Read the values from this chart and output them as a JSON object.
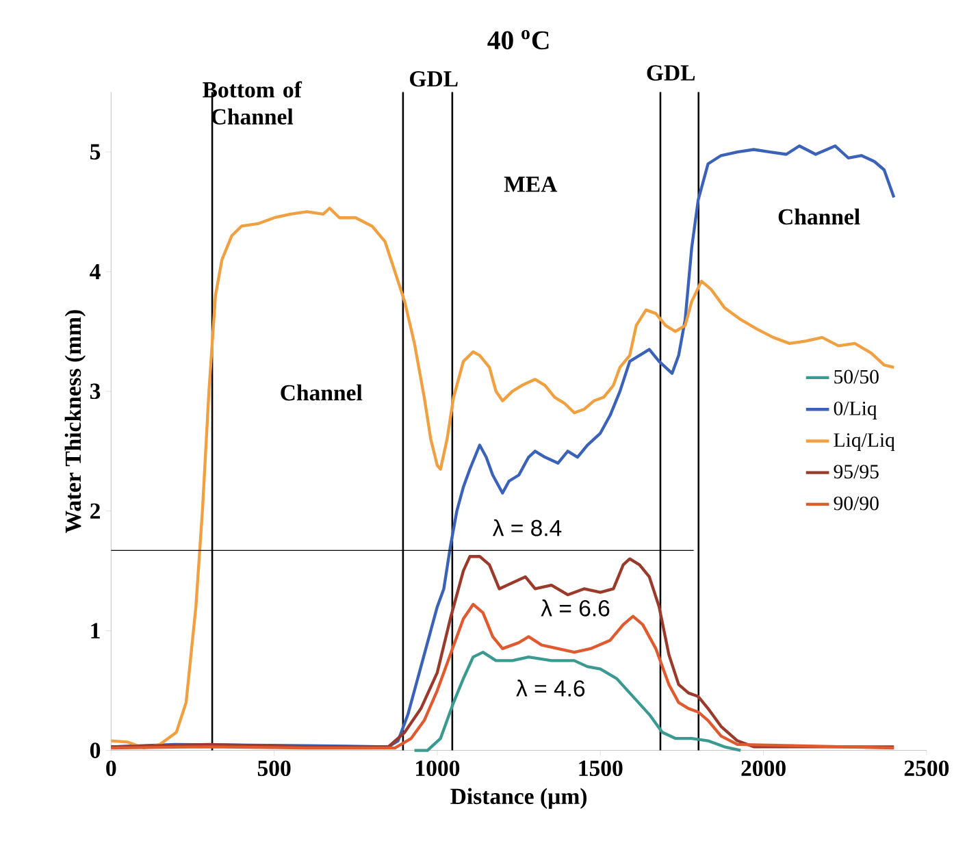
{
  "chart_data": {
    "type": "line",
    "title": "40 $^{o}$C",
    "xlabel": "Distance (µm)",
    "ylabel": "Water Thickness (mm)",
    "xlim": [
      0,
      2500
    ],
    "ylim": [
      0,
      5.5
    ],
    "xticks": [
      0,
      500,
      1000,
      1500,
      2000,
      2500
    ],
    "yticks": [
      0,
      1,
      2,
      3,
      4,
      5
    ],
    "grid": false,
    "legend": "right",
    "line_style": "solid",
    "marker": "none",
    "ref_lines": [
      {
        "axis": "x",
        "value": 310,
        "color": "#000000"
      },
      {
        "axis": "x",
        "value": 895,
        "color": "#000000"
      },
      {
        "axis": "x",
        "value": 1046,
        "color": "#000000"
      },
      {
        "axis": "x",
        "value": 1684,
        "color": "#000000"
      },
      {
        "axis": "x",
        "value": 1801,
        "color": "#000000"
      }
    ],
    "annotations": [
      "Bottom of Channel",
      "GDL",
      "GDL",
      "MEA",
      "Channel",
      "Channel",
      "λ = 8.4",
      "λ = 6.6",
      "λ = 4.6"
    ],
    "series": [
      {
        "name": "50/50",
        "color": "#3a9a8f",
        "x": [
          930,
          970,
          1010,
          1050,
          1080,
          1110,
          1140,
          1180,
          1230,
          1280,
          1350,
          1420,
          1460,
          1500,
          1550,
          1600,
          1650,
          1690,
          1730,
          1780,
          1830,
          1880,
          1930
        ],
        "values": [
          0,
          0,
          0.1,
          0.4,
          0.6,
          0.78,
          0.82,
          0.75,
          0.75,
          0.78,
          0.75,
          0.75,
          0.7,
          0.68,
          0.6,
          0.45,
          0.3,
          0.15,
          0.1,
          0.1,
          0.08,
          0.03,
          0
        ]
      },
      {
        "name": "0/Liq",
        "color": "#3a62b8",
        "x": [
          0,
          200,
          400,
          600,
          850,
          880,
          910,
          950,
          980,
          1000,
          1020,
          1040,
          1060,
          1080,
          1100,
          1130,
          1150,
          1170,
          1200,
          1220,
          1250,
          1280,
          1300,
          1330,
          1370,
          1400,
          1430,
          1460,
          1500,
          1530,
          1560,
          1590,
          1620,
          1650,
          1680,
          1700,
          1720,
          1740,
          1760,
          1780,
          1800,
          1830,
          1870,
          1920,
          1970,
          2020,
          2070,
          2110,
          2160,
          2220,
          2260,
          2300,
          2340,
          2370,
          2400
        ],
        "values": [
          0.03,
          0.05,
          null,
          0.04,
          0.03,
          0.08,
          0.3,
          0.7,
          1.0,
          1.2,
          1.35,
          1.7,
          2.0,
          2.2,
          2.35,
          2.55,
          2.45,
          2.3,
          2.15,
          2.25,
          2.3,
          2.45,
          2.5,
          2.45,
          2.4,
          2.5,
          2.45,
          2.55,
          2.65,
          2.8,
          3.0,
          3.25,
          3.3,
          3.35,
          3.25,
          3.2,
          3.15,
          3.3,
          3.6,
          4.2,
          4.6,
          4.9,
          4.97,
          5.0,
          5.02,
          5.0,
          4.98,
          5.05,
          4.98,
          5.05,
          4.95,
          4.97,
          4.92,
          4.85,
          4.62
        ]
      },
      {
        "name": "Liq/Liq",
        "color": "#f0a040",
        "x": [
          0,
          50,
          100,
          150,
          200,
          230,
          260,
          280,
          300,
          320,
          340,
          370,
          400,
          450,
          500,
          550,
          600,
          650,
          670,
          700,
          750,
          800,
          840,
          870,
          900,
          930,
          960,
          980,
          1000,
          1010,
          1030,
          1050,
          1080,
          1110,
          1130,
          1160,
          1180,
          1200,
          1230,
          1260,
          1300,
          1330,
          1360,
          1390,
          1420,
          1450,
          1480,
          1510,
          1540,
          1560,
          1590,
          1610,
          1640,
          1670,
          1700,
          1730,
          1760,
          1780,
          1810,
          1840,
          1880,
          1930,
          1980,
          2030,
          2080,
          2130,
          2180,
          2230,
          2280,
          2330,
          2370,
          2400
        ],
        "values": [
          0.08,
          0.07,
          0.02,
          0.05,
          0.15,
          0.4,
          1.2,
          2.0,
          3.0,
          3.8,
          4.1,
          4.3,
          4.38,
          4.4,
          4.45,
          4.48,
          4.5,
          4.48,
          4.53,
          4.45,
          4.45,
          4.38,
          4.25,
          4.0,
          3.75,
          3.4,
          2.95,
          2.6,
          2.38,
          2.35,
          2.6,
          2.95,
          3.25,
          3.33,
          3.3,
          3.2,
          3.0,
          2.92,
          3.0,
          3.05,
          3.1,
          3.05,
          2.95,
          2.9,
          2.82,
          2.85,
          2.92,
          2.95,
          3.05,
          3.2,
          3.3,
          3.55,
          3.68,
          3.65,
          3.55,
          3.5,
          3.55,
          3.75,
          3.92,
          3.85,
          3.7,
          3.6,
          3.52,
          3.45,
          3.4,
          3.42,
          3.45,
          3.38,
          3.4,
          3.32,
          3.22,
          3.2
        ]
      },
      {
        "name": "95/95",
        "color": "#9a3a2a",
        "x": [
          0,
          300,
          600,
          850,
          900,
          950,
          1000,
          1040,
          1080,
          1100,
          1130,
          1160,
          1190,
          1230,
          1270,
          1300,
          1350,
          1400,
          1450,
          1500,
          1540,
          1570,
          1590,
          1620,
          1650,
          1680,
          1710,
          1740,
          1770,
          1800,
          1830,
          1870,
          1920,
          1970,
          2400
        ],
        "values": [
          0.03,
          0.05,
          0.03,
          0.03,
          0.15,
          0.35,
          0.65,
          1.1,
          1.5,
          1.62,
          1.62,
          1.55,
          1.35,
          1.4,
          1.45,
          1.35,
          1.38,
          1.3,
          1.35,
          1.32,
          1.35,
          1.55,
          1.6,
          1.55,
          1.45,
          1.2,
          0.8,
          0.55,
          0.48,
          0.45,
          0.35,
          0.2,
          0.08,
          0.03,
          0.03
        ]
      },
      {
        "name": "90/90",
        "color": "#e05a30",
        "x": [
          0,
          300,
          600,
          870,
          920,
          960,
          1000,
          1040,
          1080,
          1110,
          1140,
          1170,
          1200,
          1250,
          1280,
          1320,
          1370,
          1420,
          1470,
          1530,
          1570,
          1600,
          1630,
          1670,
          1710,
          1740,
          1770,
          1800,
          1830,
          1870,
          1920,
          2400
        ],
        "values": [
          0.02,
          0.03,
          0.02,
          0.02,
          0.1,
          0.25,
          0.5,
          0.8,
          1.1,
          1.22,
          1.15,
          0.95,
          0.85,
          0.9,
          0.95,
          0.88,
          0.85,
          0.82,
          0.85,
          0.92,
          1.05,
          1.12,
          1.05,
          0.85,
          0.55,
          0.4,
          0.35,
          0.32,
          0.25,
          0.12,
          0.05,
          0.02
        ]
      },
      {
        "type": "line",
        "color": "#000000",
        "x": [
          0,
          1786
        ],
        "values": [
          1.67,
          1.67
        ]
      }
    ]
  }
}
